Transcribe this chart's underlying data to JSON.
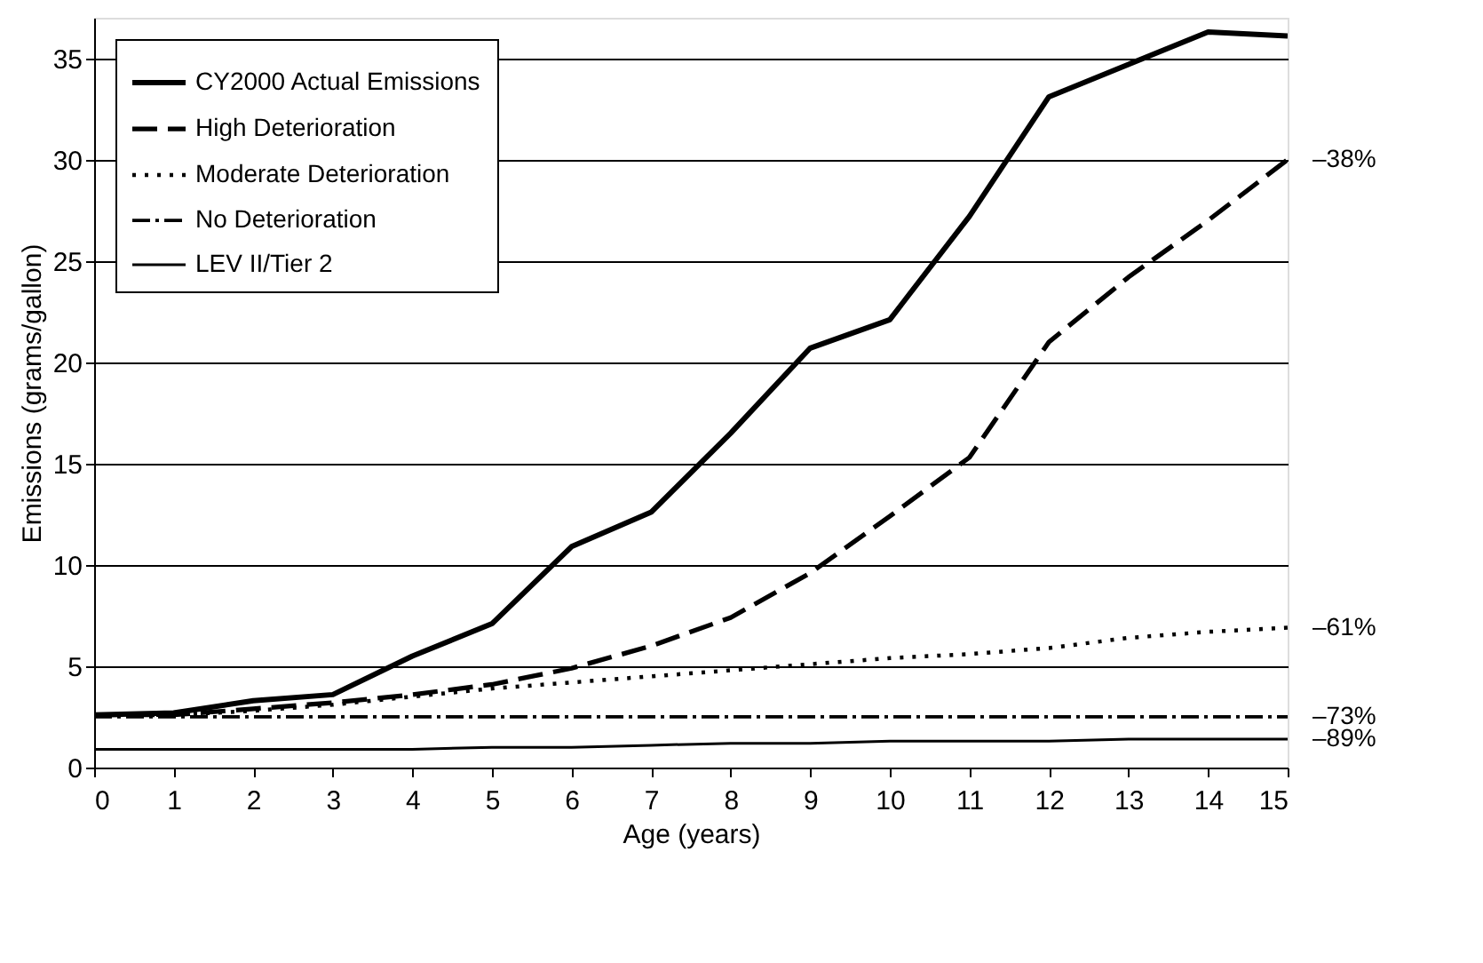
{
  "chart_data": {
    "type": "line",
    "xlabel": "Age (years)",
    "ylabel": "Emissions (grams/gallon)",
    "x": [
      0,
      1,
      2,
      3,
      4,
      5,
      6,
      7,
      8,
      9,
      10,
      11,
      12,
      13,
      14,
      15
    ],
    "xlim": [
      0,
      15
    ],
    "xticks": [
      0,
      1,
      2,
      3,
      4,
      5,
      6,
      7,
      8,
      9,
      10,
      11,
      12,
      13,
      14,
      15
    ],
    "ylim": [
      0,
      37
    ],
    "yticks": [
      0,
      5,
      10,
      15,
      20,
      25,
      30,
      35
    ],
    "grid": "y",
    "legend": "top left",
    "series": [
      {
        "name": "CY2000 Actual Emissions",
        "color": "#000000",
        "line_style": "solid",
        "values": [
          2.6,
          2.7,
          3.3,
          3.6,
          5.5,
          7.1,
          10.9,
          12.6,
          16.5,
          20.7,
          22.1,
          27.2,
          33.1,
          34.7,
          36.3,
          36.1
        ]
      },
      {
        "name": "High Deterioration",
        "color": "#000000",
        "line_style": "dashed",
        "values": [
          2.6,
          2.6,
          2.9,
          3.2,
          3.6,
          4.1,
          4.9,
          6.0,
          7.4,
          9.6,
          12.4,
          15.3,
          21.0,
          24.2,
          27.0,
          30.0
        ]
      },
      {
        "name": "Moderate Deterioration",
        "color": "#000000",
        "line_style": "dotted",
        "values": [
          2.6,
          2.6,
          2.8,
          3.1,
          3.5,
          3.9,
          4.2,
          4.5,
          4.8,
          5.1,
          5.4,
          5.6,
          5.9,
          6.4,
          6.7,
          6.9
        ]
      },
      {
        "name": "No Deterioration",
        "color": "#000000",
        "line_style": "dashdot",
        "values": [
          2.5,
          2.5,
          2.5,
          2.5,
          2.5,
          2.5,
          2.5,
          2.5,
          2.5,
          2.5,
          2.5,
          2.5,
          2.5,
          2.5,
          2.5,
          2.5
        ]
      },
      {
        "name": "LEV II/Tier 2",
        "color": "#000000",
        "line_style": "solid",
        "values": [
          0.9,
          0.9,
          0.9,
          0.9,
          0.9,
          1.0,
          1.0,
          1.1,
          1.2,
          1.2,
          1.3,
          1.3,
          1.3,
          1.4,
          1.4,
          1.4
        ]
      }
    ],
    "annotations": [
      "–38%",
      "–61%",
      "–73%",
      "–89%"
    ]
  }
}
